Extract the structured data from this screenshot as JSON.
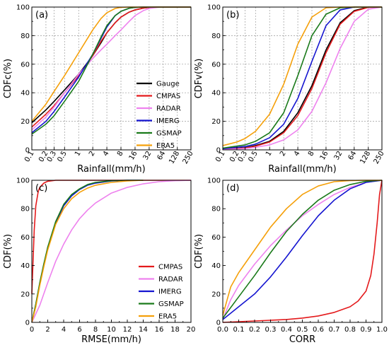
{
  "chart_data": [
    {
      "panel_label": "(a)",
      "type": "line",
      "xscale": "log",
      "xlabel": "Rainfall(mm/h)",
      "ylabel": "CDFc(%)",
      "xlim": [
        0.1,
        250
      ],
      "ylim": [
        0,
        100
      ],
      "xticks": [
        0.1,
        0.2,
        0.3,
        0.5,
        1,
        2,
        4,
        8,
        16,
        32,
        64,
        128,
        250
      ],
      "xtick_labels": [
        "0.1",
        "0.2",
        "0.3",
        "0.5",
        "1",
        "2",
        "4",
        "8",
        "16",
        "32",
        "64",
        "128",
        "250"
      ],
      "yticks": [
        0,
        20,
        40,
        60,
        80,
        100
      ],
      "ytick_labels": [
        "0",
        "20",
        "40",
        "60",
        "80",
        "100"
      ],
      "grid": true,
      "legend_position": "lower-right",
      "series": [
        {
          "name": "Gauge",
          "color": "#000000",
          "x": [
            0.1,
            0.2,
            0.3,
            0.5,
            1,
            2,
            3,
            4,
            6,
            8,
            12,
            16,
            24,
            32,
            48,
            64,
            250
          ],
          "y": [
            19,
            28,
            34,
            42,
            53,
            66,
            75,
            82,
            89,
            93,
            96.5,
            98,
            99.3,
            99.8,
            100,
            100,
            100
          ]
        },
        {
          "name": "CMPAS",
          "color": "#e41a1c",
          "x": [
            0.1,
            0.2,
            0.3,
            0.5,
            1,
            2,
            3,
            4,
            6,
            8,
            12,
            16,
            24,
            32,
            48,
            64,
            250
          ],
          "y": [
            16,
            25,
            31,
            40,
            52,
            66,
            76,
            82,
            89,
            93,
            96.5,
            98,
            99.3,
            99.8,
            100,
            100,
            100
          ]
        },
        {
          "name": "RADAR",
          "color": "#ee82ee",
          "x": [
            0.1,
            0.2,
            0.3,
            0.5,
            1,
            2,
            3,
            4,
            6,
            8,
            12,
            16,
            24,
            32,
            48,
            64,
            250
          ],
          "y": [
            14,
            23,
            30,
            40,
            53,
            64,
            70,
            74,
            80,
            84,
            90,
            94,
            97.5,
            99,
            99.8,
            100,
            100
          ]
        },
        {
          "name": "IMERG",
          "color": "#1515d0",
          "x": [
            0.1,
            0.2,
            0.3,
            0.5,
            1,
            2,
            3,
            4,
            6,
            8,
            12,
            16,
            24,
            32,
            250
          ],
          "y": [
            12,
            20,
            27,
            37,
            51,
            67,
            78,
            86,
            94,
            97,
            99.2,
            99.8,
            100,
            100,
            100
          ]
        },
        {
          "name": "GSMAP",
          "color": "#1a7a1a",
          "x": [
            0.1,
            0.2,
            0.3,
            0.5,
            1,
            2,
            3,
            4,
            6,
            8,
            12,
            16,
            24,
            32,
            250
          ],
          "y": [
            11,
            18,
            24,
            34,
            48,
            67,
            79,
            87,
            94,
            97,
            99.2,
            99.8,
            100,
            100,
            100
          ]
        },
        {
          "name": "ERA5",
          "color": "#f5a00a",
          "x": [
            0.1,
            0.2,
            0.3,
            0.5,
            1,
            2,
            3,
            4,
            6,
            8,
            12,
            16,
            250
          ],
          "y": [
            20,
            32,
            41,
            52,
            68,
            84,
            92,
            96,
            99,
            99.8,
            100,
            100,
            100
          ]
        }
      ]
    },
    {
      "panel_label": "(b)",
      "type": "line",
      "xscale": "log",
      "xlabel": "Rainfall(mm/h)",
      "ylabel": "CDFv(%)",
      "xlim": [
        0.1,
        250
      ],
      "ylim": [
        0,
        100
      ],
      "xticks": [
        0.1,
        0.2,
        0.3,
        0.5,
        1,
        2,
        4,
        8,
        16,
        32,
        64,
        128,
        250
      ],
      "xtick_labels": [
        "0.1",
        "0.2",
        "0.3",
        "0.5",
        "1",
        "2",
        "4",
        "8",
        "16",
        "32",
        "64",
        "128",
        "250"
      ],
      "yticks": [
        0,
        20,
        40,
        60,
        80,
        100
      ],
      "ytick_labels": [
        "0",
        "20",
        "40",
        "60",
        "80",
        "100"
      ],
      "grid": true,
      "series": [
        {
          "name": "Gauge",
          "color": "#000000",
          "x": [
            0.1,
            0.3,
            0.5,
            1,
            2,
            4,
            8,
            16,
            32,
            64,
            128,
            250
          ],
          "y": [
            0.5,
            1.5,
            3,
            6,
            13,
            26,
            45,
            70,
            89,
            97.5,
            100,
            100
          ]
        },
        {
          "name": "CMPAS",
          "color": "#e41a1c",
          "x": [
            0.1,
            0.3,
            0.5,
            1,
            2,
            4,
            8,
            16,
            32,
            64,
            128,
            250
          ],
          "y": [
            0.4,
            1.3,
            2.6,
            5.5,
            12,
            24,
            43,
            68,
            88,
            97,
            99.8,
            100
          ]
        },
        {
          "name": "RADAR",
          "color": "#ee82ee",
          "x": [
            0.1,
            0.3,
            0.5,
            1,
            2,
            4,
            8,
            16,
            32,
            64,
            128,
            250
          ],
          "y": [
            0.3,
            0.9,
            1.8,
            3.5,
            7,
            14,
            27,
            47,
            71,
            90,
            98.5,
            100
          ]
        },
        {
          "name": "IMERG",
          "color": "#1515d0",
          "x": [
            0.1,
            0.3,
            0.5,
            1,
            2,
            4,
            8,
            16,
            32,
            64,
            250
          ],
          "y": [
            0.8,
            2.4,
            4,
            8.5,
            18,
            36,
            62,
            87,
            98,
            100,
            100
          ]
        },
        {
          "name": "GSMAP",
          "color": "#1a7a1a",
          "x": [
            0.1,
            0.3,
            0.5,
            1,
            2,
            4,
            8,
            16,
            32,
            64,
            250
          ],
          "y": [
            1.2,
            3.5,
            6,
            12,
            26,
            52,
            80,
            95,
            99.5,
            100,
            100
          ]
        },
        {
          "name": "ERA5",
          "color": "#f5a00a",
          "x": [
            0.1,
            0.2,
            0.3,
            0.5,
            1,
            2,
            4,
            8,
            16,
            32,
            250
          ],
          "y": [
            3,
            5.5,
            8,
            13,
            25,
            46,
            74,
            93,
            99.5,
            100,
            100
          ]
        }
      ]
    },
    {
      "panel_label": "(c)",
      "type": "line",
      "xscale": "linear",
      "xlabel": "RMSE(mm/h)",
      "ylabel": "CDF(%)",
      "xlim": [
        0,
        20
      ],
      "ylim": [
        0,
        100
      ],
      "xticks": [
        0,
        2,
        4,
        6,
        8,
        10,
        12,
        14,
        16,
        18,
        20
      ],
      "xtick_labels": [
        "0",
        "2",
        "4",
        "6",
        "8",
        "10",
        "12",
        "14",
        "16",
        "18",
        "20"
      ],
      "yticks": [
        0,
        20,
        40,
        60,
        80,
        100
      ],
      "ytick_labels": [
        "0",
        "20",
        "40",
        "60",
        "80",
        "100"
      ],
      "grid": false,
      "legend_position": "lower-right",
      "series": [
        {
          "name": "CMPAS",
          "color": "#e41a1c",
          "x": [
            0,
            0.1,
            0.3,
            0.5,
            0.8,
            1,
            1.5,
            2,
            3,
            5,
            20
          ],
          "y": [
            20,
            35,
            65,
            82,
            92,
            95,
            98,
            99.3,
            100,
            100,
            100
          ]
        },
        {
          "name": "RADAR",
          "color": "#ee82ee",
          "x": [
            0,
            1,
            2,
            3,
            4,
            5,
            6,
            7,
            8,
            10,
            12,
            14,
            16,
            18,
            20
          ],
          "y": [
            0,
            12,
            28,
            43,
            55,
            65,
            73,
            79,
            84,
            91,
            95,
            97.5,
            99,
            99.7,
            100
          ]
        },
        {
          "name": "IMERG",
          "color": "#1515d0",
          "x": [
            0,
            0.5,
            1,
            1.5,
            2,
            3,
            4,
            5,
            6,
            7,
            8,
            10,
            12,
            14
          ],
          "y": [
            0,
            12,
            27,
            40,
            52,
            70,
            82,
            89,
            93.5,
            96.5,
            98,
            99.5,
            100,
            100
          ]
        },
        {
          "name": "GSMAP",
          "color": "#1a7a1a",
          "x": [
            0,
            0.5,
            1,
            1.5,
            2,
            3,
            4,
            5,
            6,
            7,
            8,
            10,
            12,
            14
          ],
          "y": [
            0,
            13,
            28,
            41,
            53,
            71,
            83,
            90,
            94,
            97,
            98.5,
            99.7,
            100,
            100
          ]
        },
        {
          "name": "ERA5",
          "color": "#f5a00a",
          "x": [
            0,
            0.5,
            1,
            1.5,
            2,
            3,
            4,
            5,
            6,
            7,
            8,
            10,
            12,
            14
          ],
          "y": [
            0,
            11,
            26,
            39,
            51,
            69,
            80,
            87,
            91.5,
            94.5,
            96.5,
            98.5,
            99.5,
            100
          ]
        }
      ]
    },
    {
      "panel_label": "(d)",
      "type": "line",
      "xscale": "linear",
      "xlabel": "CORR",
      "ylabel": "CDF(%)",
      "xlim": [
        0,
        1
      ],
      "ylim": [
        0,
        100
      ],
      "xticks": [
        0,
        0.1,
        0.2,
        0.3,
        0.4,
        0.5,
        0.6,
        0.7,
        0.8,
        0.9,
        1.0
      ],
      "xtick_labels": [
        "0.0",
        "0.1",
        "0.2",
        "0.3",
        "0.4",
        "0.5",
        "0.6",
        "0.7",
        "0.8",
        "0.9",
        "1.0"
      ],
      "yticks": [
        0,
        20,
        40,
        60,
        80,
        100
      ],
      "ytick_labels": [
        "0",
        "20",
        "40",
        "60",
        "80",
        "100"
      ],
      "grid": false,
      "series": [
        {
          "name": "CMPAS",
          "color": "#e41a1c",
          "x": [
            0,
            0.2,
            0.4,
            0.5,
            0.6,
            0.7,
            0.8,
            0.85,
            0.9,
            0.93,
            0.95,
            0.97,
            0.985,
            1.0
          ],
          "y": [
            0,
            1,
            2,
            3,
            4.5,
            7,
            11,
            15,
            22,
            33,
            48,
            70,
            90,
            100
          ]
        },
        {
          "name": "RADAR",
          "color": "#ee82ee",
          "x": [
            0,
            0.05,
            0.1,
            0.2,
            0.3,
            0.4,
            0.5,
            0.6,
            0.7,
            0.8,
            0.9,
            1.0
          ],
          "y": [
            2,
            16,
            26,
            41,
            54,
            65,
            75,
            83,
            90,
            95,
            98.5,
            100
          ]
        },
        {
          "name": "IMERG",
          "color": "#1515d0",
          "x": [
            0,
            0.1,
            0.2,
            0.3,
            0.4,
            0.5,
            0.6,
            0.7,
            0.8,
            0.9,
            1.0
          ],
          "y": [
            2,
            11,
            20,
            32,
            46,
            61,
            75,
            86,
            94,
            98.5,
            100
          ]
        },
        {
          "name": "GSMAP",
          "color": "#1a7a1a",
          "x": [
            0,
            0.1,
            0.2,
            0.3,
            0.4,
            0.5,
            0.6,
            0.7,
            0.8,
            0.9,
            1.0
          ],
          "y": [
            3,
            18,
            33,
            49,
            64,
            76,
            86,
            93,
            97,
            99.3,
            100
          ]
        },
        {
          "name": "ERA5",
          "color": "#f5a00a",
          "x": [
            0,
            0.05,
            0.1,
            0.2,
            0.3,
            0.4,
            0.5,
            0.6,
            0.7,
            0.8,
            0.9,
            1.0
          ],
          "y": [
            5,
            25,
            35,
            51,
            67,
            80,
            90,
            96,
            99,
            99.8,
            100,
            100
          ]
        }
      ]
    }
  ]
}
